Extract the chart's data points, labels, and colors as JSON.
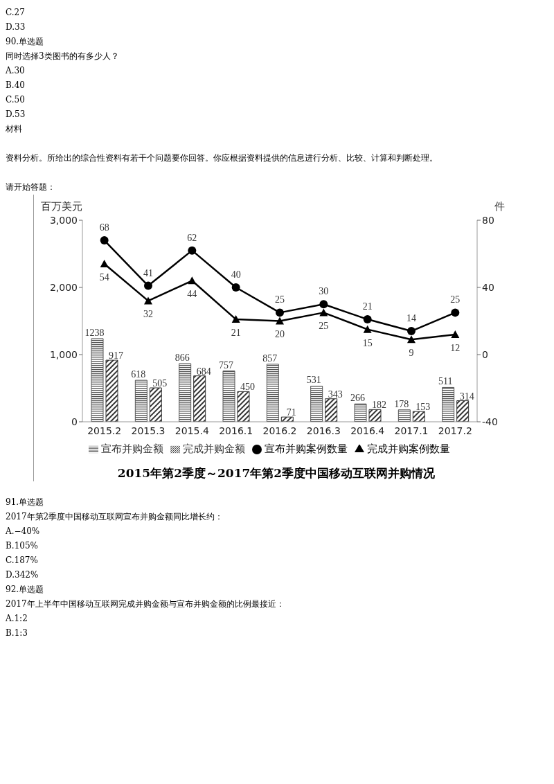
{
  "chart_data": {
    "type": "bar",
    "title": "2015年第2季度～2017年第2季度中国移动互联网并购情况",
    "ylabel": "百万美元",
    "y2label": "件",
    "categories": [
      "2015.2",
      "2015.3",
      "2015.4",
      "2016.1",
      "2016.2",
      "2016.3",
      "2016.4",
      "2017.1",
      "2017.2"
    ],
    "series": [
      {
        "name": "宣布并购金额",
        "color": "#555555",
        "values": [
          1238,
          618,
          866,
          757,
          857,
          531,
          266,
          178,
          511
        ]
      },
      {
        "name": "完成并购金额",
        "color": "#333333",
        "values": [
          917,
          505,
          684,
          450,
          71,
          343,
          182,
          153,
          314
        ]
      },
      {
        "name": "宣布并购案例数量",
        "type": "line",
        "axis": "y2",
        "marker": "circle",
        "color": "#000000",
        "values": [
          68,
          41,
          62,
          40,
          25,
          30,
          21,
          14,
          25
        ]
      },
      {
        "name": "完成并购案例数量",
        "type": "line",
        "axis": "y2",
        "marker": "triangle",
        "color": "#000000",
        "values": [
          54,
          32,
          44,
          21,
          20,
          25,
          15,
          9,
          12
        ]
      }
    ],
    "ylim": [
      0,
      3000
    ],
    "yticks": [
      0,
      {
        "value": 1000,
        "label": "1,000"
      },
      {
        "value": 2000,
        "label": "2,000"
      },
      {
        "value": 3000,
        "label": "3,000"
      }
    ],
    "y2lim": [
      -40,
      80
    ],
    "y2ticks": [
      -40,
      0,
      40,
      80
    ],
    "grid": false,
    "legend": "bottom",
    "data_labels": true,
    "annotations": [
      "C.27",
      "D.33",
      "90.单选题",
      "同时选择3类图书的有多少人？",
      "A.30",
      "B.40",
      "C.50",
      "D.53",
      "材料",
      "资料分析。所给出的综合性资料有若干个问题要你回答。你应根据资料提供的信息进行分析、比较、计算和判断处理。",
      "请开始答题：",
      "91.单选题",
      "2017年第2季度中国移动互联网宣布并购金额同比增长约：",
      "A.−40%",
      "B.105%",
      "C.187%",
      "D.342%",
      "92.单选题",
      "2017年上半年中国移动互联网完成并购金额与宣布并购金额的比例最接近：",
      "A.1:2",
      "B.1:3"
    ]
  }
}
